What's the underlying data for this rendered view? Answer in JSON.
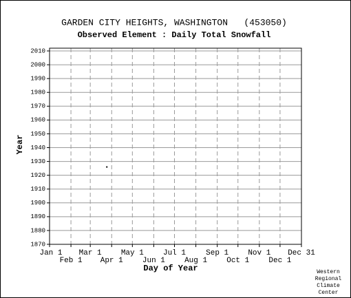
{
  "chart_data": {
    "type": "scatter",
    "title": "GARDEN CITY HEIGHTS, WASHINGTON   (453050)",
    "subtitle": "Observed Element : Daily Total Snowfall",
    "ylabel": "Year",
    "xlabel": "Day of Year",
    "x": [
      84
    ],
    "values": [
      1926
    ],
    "color": "#000000",
    "xlim": [
      1,
      366
    ],
    "ylim": [
      1870,
      2012
    ],
    "xticks": [
      {
        "value": 1,
        "label": "Jan 1"
      },
      {
        "value": 32,
        "label": "Feb 1"
      },
      {
        "value": 60,
        "label": "Mar 1"
      },
      {
        "value": 91,
        "label": "Apr 1"
      },
      {
        "value": 121,
        "label": "May 1"
      },
      {
        "value": 152,
        "label": "Jun 1"
      },
      {
        "value": 182,
        "label": "Jul 1"
      },
      {
        "value": 213,
        "label": "Aug 1"
      },
      {
        "value": 244,
        "label": "Sep 1"
      },
      {
        "value": 274,
        "label": "Oct 1"
      },
      {
        "value": 305,
        "label": "Nov 1"
      },
      {
        "value": 335,
        "label": "Dec 1"
      },
      {
        "value": 366,
        "label": "Dec 31"
      }
    ],
    "yticks": [
      1870,
      1880,
      1890,
      1900,
      1910,
      1920,
      1930,
      1940,
      1950,
      1960,
      1970,
      1980,
      1990,
      2000,
      2010
    ],
    "grid": true,
    "credit": [
      "Western",
      "Regional",
      "Climate",
      "Center"
    ]
  }
}
